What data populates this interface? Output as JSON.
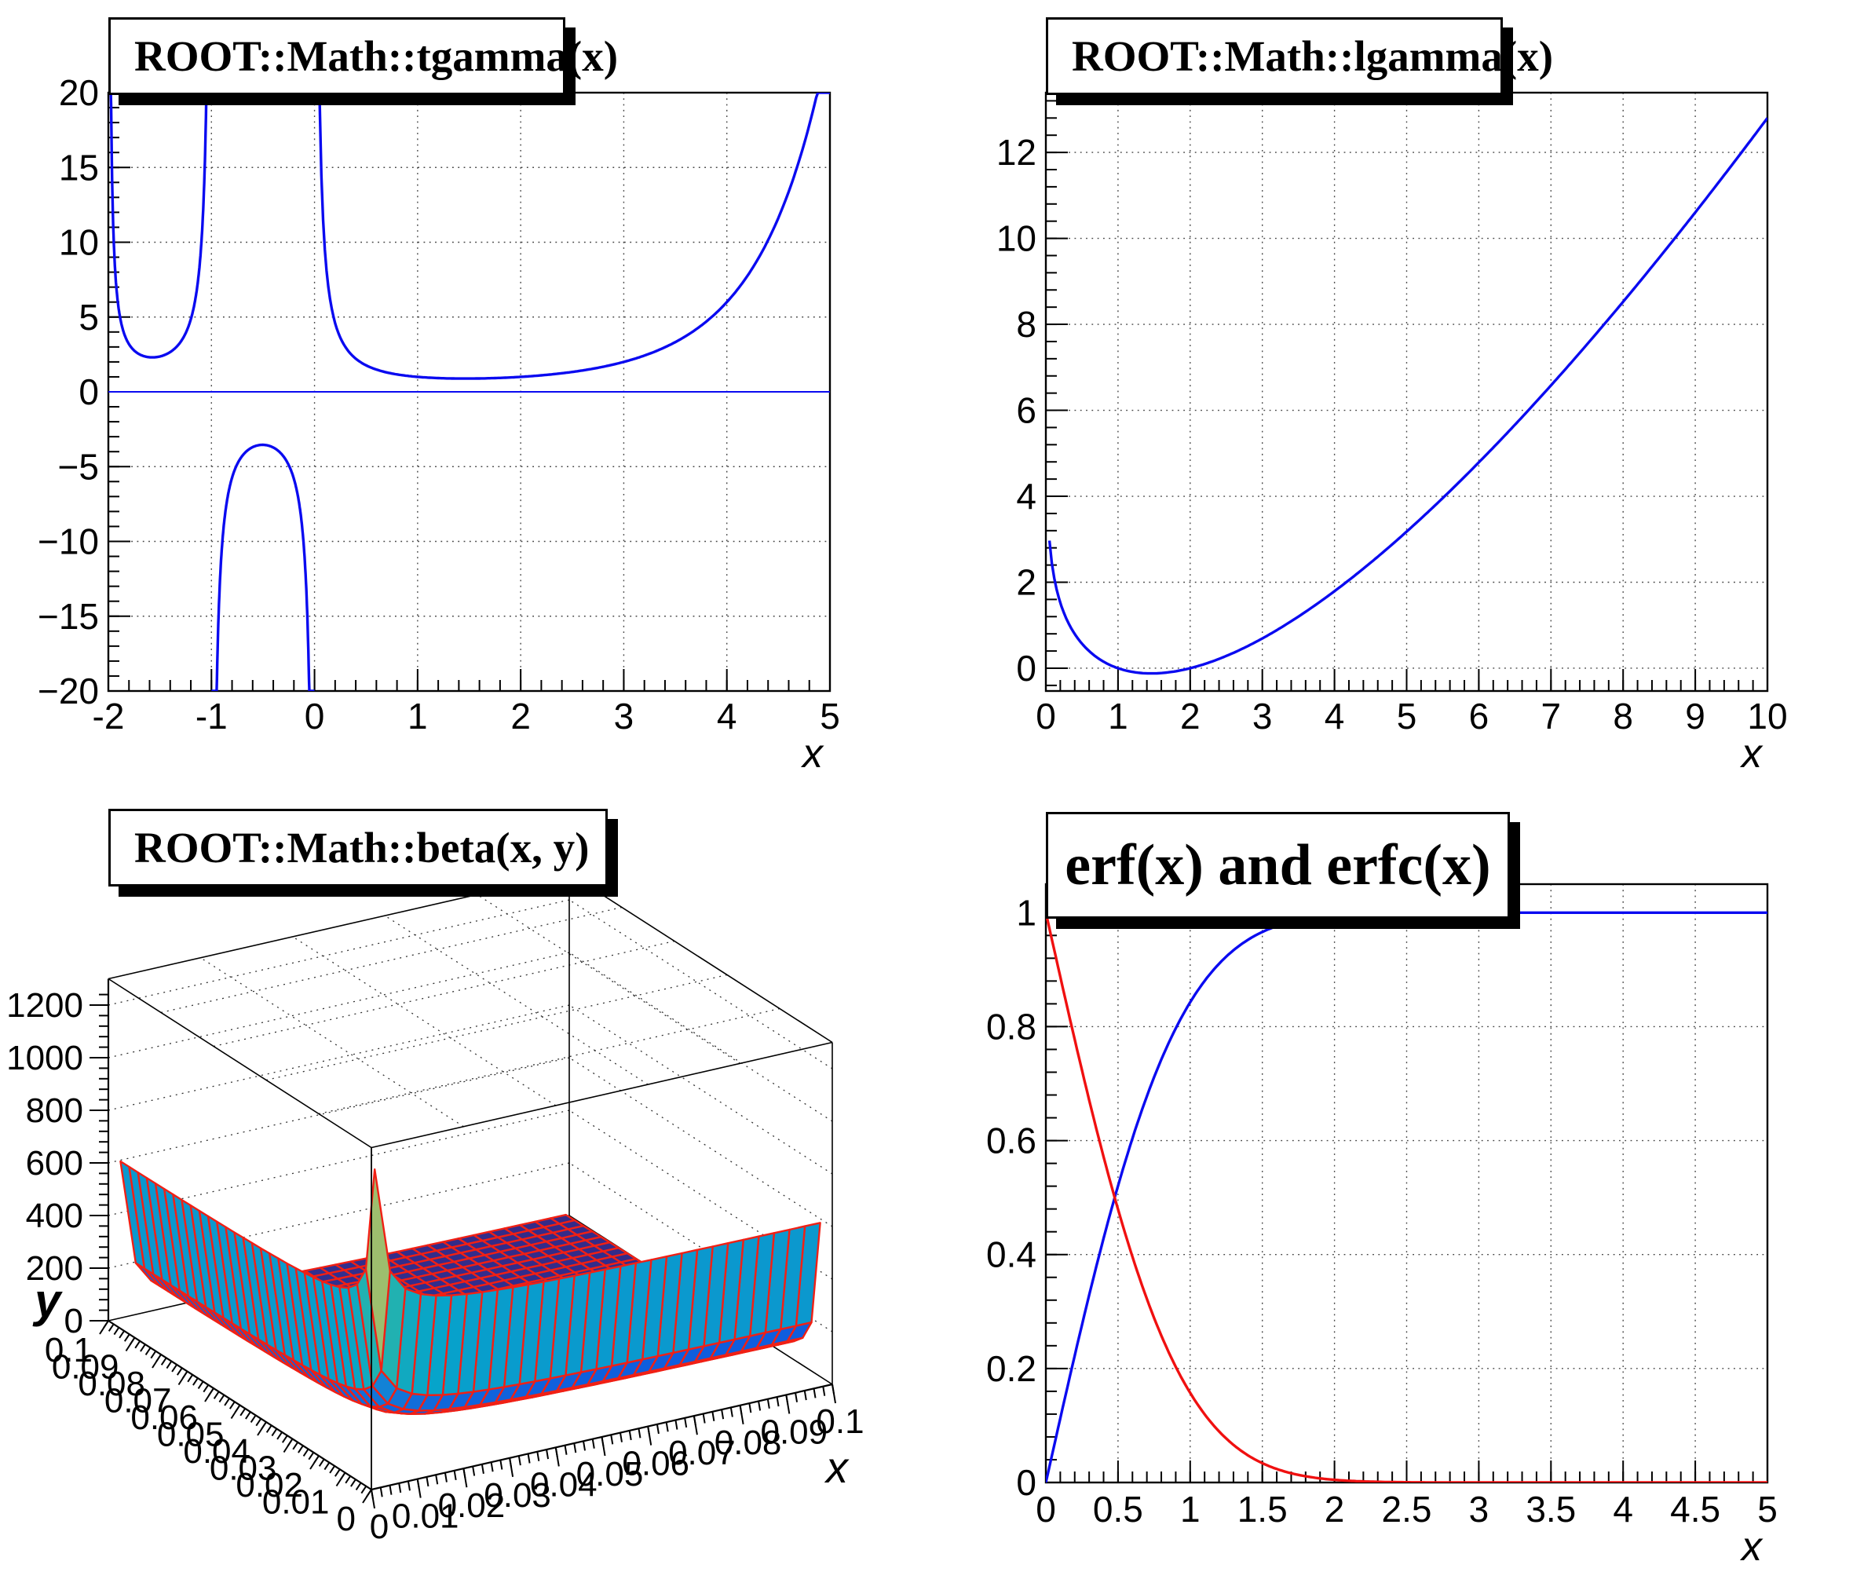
{
  "app": {
    "type": "ROOT canvas, 2x2 pads",
    "background": "#ffffff"
  },
  "colors": {
    "curve_blue": "#0a0af0",
    "curve_red": "#f01010",
    "axis": "#000000",
    "grid": "#444444",
    "pave_fill": "#ffffff",
    "pave_border": "#000000",
    "pave_shadow": "#000000",
    "surface_mesh_red": "#f02015",
    "bird_palette": [
      "#352A87",
      "#0F5CDD",
      "#1481D6",
      "#06A4CA",
      "#2EB7A4",
      "#87BF77",
      "#D1BB59",
      "#FEC832",
      "#F9FB0E"
    ]
  },
  "chart_data": [
    {
      "id": "tgamma",
      "type": "line",
      "title": "ROOT::Math::tgamma(x)",
      "xlabel": "x",
      "ylabel": "",
      "x_range": [
        -2,
        5
      ],
      "y_range": [
        -20,
        20
      ],
      "x_ticks": [
        "-2",
        "-1",
        "0",
        "1",
        "2",
        "3",
        "4",
        "5"
      ],
      "x_tick_values": [
        -2,
        -1,
        0,
        1,
        2,
        3,
        4,
        5
      ],
      "x_minor_step": 0.2,
      "y_ticks": [
        "20",
        "15",
        "10",
        "5",
        "0",
        "-5",
        "-10",
        "-15",
        "-20"
      ],
      "y_tick_values": [
        20,
        15,
        10,
        5,
        0,
        -5,
        -10,
        -15,
        -20
      ],
      "y_minor_step": 1,
      "grid": "dotted-at-major-ticks",
      "zero_line": true,
      "series": [
        {
          "name": "ROOT::Math::tgamma(x)",
          "color": "curve_blue",
          "function": "tgamma",
          "clip": [
            -20,
            20
          ],
          "branches": [
            [
              -1.9999,
              -1.0001
            ],
            [
              -0.9999,
              -0.0001
            ],
            [
              0.0001,
              5
            ]
          ],
          "key_points": [
            [
              -1.98,
              20
            ],
            [
              -1.9,
              5.56
            ],
            [
              -1.7,
              2.51
            ],
            [
              -1.573,
              2.3
            ],
            [
              -1.4,
              2.66
            ],
            [
              -1.2,
              4.85
            ],
            [
              -1.1,
              9.71
            ],
            [
              -1.05,
              19.6
            ],
            [
              -0.95,
              -20
            ],
            [
              -0.9,
              -10.57
            ],
            [
              -0.7,
              -4.27
            ],
            [
              -0.504,
              -3.545
            ],
            [
              -0.3,
              -4.33
            ],
            [
              -0.1,
              -10.69
            ],
            [
              -0.05,
              -20
            ],
            [
              0.049,
              20
            ],
            [
              0.1,
              9.51
            ],
            [
              0.5,
              1.772
            ],
            [
              1,
              1
            ],
            [
              1.4616,
              0.8856
            ],
            [
              2,
              1
            ],
            [
              3,
              2
            ],
            [
              4,
              6
            ],
            [
              4.5,
              11.63
            ],
            [
              4.88,
              20
            ]
          ]
        }
      ]
    },
    {
      "id": "lgamma",
      "type": "line",
      "title": "ROOT::Math::lgamma(x)",
      "xlabel": "x",
      "ylabel": "",
      "x_range": [
        0,
        10
      ],
      "y_range": [
        -0.53,
        13.39
      ],
      "x_ticks": [
        "0",
        "1",
        "2",
        "3",
        "4",
        "5",
        "6",
        "7",
        "8",
        "9",
        "10"
      ],
      "x_tick_values": [
        0,
        1,
        2,
        3,
        4,
        5,
        6,
        7,
        8,
        9,
        10
      ],
      "x_minor_step": 0.2,
      "y_ticks": [
        "12",
        "10",
        "8",
        "6",
        "4",
        "2",
        "0"
      ],
      "y_tick_values": [
        12,
        10,
        8,
        6,
        4,
        2,
        0
      ],
      "y_minor_step": 0.4,
      "grid": "dotted-at-major-ticks",
      "series": [
        {
          "name": "ROOT::Math::lgamma(x)",
          "color": "curve_blue",
          "function": "lgamma",
          "draw_range": [
            0.05,
            10
          ],
          "key_points": [
            [
              0.05,
              2.97
            ],
            [
              0.1,
              2.25
            ],
            [
              0.2,
              1.52
            ],
            [
              0.5,
              0.572
            ],
            [
              1,
              0
            ],
            [
              1.4616,
              -0.1214
            ],
            [
              2,
              0
            ],
            [
              3,
              0.693
            ],
            [
              4,
              1.792
            ],
            [
              5,
              3.178
            ],
            [
              6,
              4.787
            ],
            [
              7,
              6.579
            ],
            [
              8,
              8.525
            ],
            [
              9,
              10.605
            ],
            [
              10,
              12.802
            ]
          ]
        }
      ]
    },
    {
      "id": "beta",
      "type": "surface",
      "title": "ROOT::Math::beta(x, y)",
      "xlabel": "x",
      "ylabel": "y",
      "x_range": [
        0,
        0.1
      ],
      "y_range": [
        0,
        0.1
      ],
      "z_ticks": [
        "0",
        "200",
        "400",
        "600",
        "800",
        "1000",
        "1200"
      ],
      "z_tick_values": [
        0,
        200,
        400,
        600,
        800,
        1000,
        1200
      ],
      "z_minor_step": 40,
      "x_ticks": [
        "0",
        "0.01",
        "0.02",
        "0.03",
        "0.04",
        "0.05",
        "0.06",
        "0.07",
        "0.08",
        "0.09",
        "0.1"
      ],
      "y_ticks": [
        "0",
        "0.01",
        "0.02",
        "0.03",
        "0.04",
        "0.05",
        "0.06",
        "0.07",
        "0.08",
        "0.09",
        "0.1"
      ],
      "axis_tick_values": [
        0,
        0.01,
        0.02,
        0.03,
        0.04,
        0.05,
        0.06,
        0.07,
        0.08,
        0.09,
        0.1
      ],
      "axis_minor_step": 0.002,
      "grid_n": 30,
      "function": "beta(x,y) = Gamma(x)Gamma(y)/Gamma(x+y)",
      "z_color_range": [
        19.7,
        1199.6
      ],
      "key_points": [
        [
          0.00167,
          0.00167,
          1199.5
        ],
        [
          0.05,
          0.00167,
          619
        ],
        [
          0.00167,
          0.1,
          610
        ],
        [
          0.05,
          0.05,
          39.3
        ],
        [
          0.1,
          0.1,
          19.7
        ]
      ]
    },
    {
      "id": "erf",
      "type": "line",
      "title": "erf(x) and erfc(x)",
      "xlabel": "x",
      "ylabel": "",
      "x_range": [
        0,
        5
      ],
      "y_range": [
        0,
        1.05
      ],
      "x_ticks": [
        "0",
        "0.5",
        "1",
        "1.5",
        "2",
        "2.5",
        "3",
        "3.5",
        "4",
        "4.5",
        "5"
      ],
      "x_tick_values": [
        0,
        0.5,
        1,
        1.5,
        2,
        2.5,
        3,
        3.5,
        4,
        4.5,
        5
      ],
      "x_minor_step": 0.1,
      "y_ticks": [
        "1",
        "0.8",
        "0.6",
        "0.4",
        "0.2",
        "0"
      ],
      "y_tick_values": [
        1,
        0.8,
        0.6,
        0.4,
        0.2,
        0
      ],
      "y_minor_step": 0.04,
      "grid": "dotted-at-major-ticks",
      "series": [
        {
          "name": "erf(x)",
          "color": "curve_blue",
          "function": "erf",
          "key_points": [
            [
              0,
              0
            ],
            [
              0.25,
              0.2763
            ],
            [
              0.5,
              0.5205
            ],
            [
              0.75,
              0.7112
            ],
            [
              1,
              0.8427
            ],
            [
              1.25,
              0.9229
            ],
            [
              1.5,
              0.9661
            ],
            [
              2,
              0.9953
            ],
            [
              2.5,
              0.9996
            ],
            [
              3,
              1
            ],
            [
              5,
              1
            ]
          ]
        },
        {
          "name": "erfc(x)",
          "color": "curve_red",
          "function": "erfc",
          "key_points": [
            [
              0,
              1
            ],
            [
              0.25,
              0.7237
            ],
            [
              0.5,
              0.4795
            ],
            [
              0.75,
              0.2888
            ],
            [
              1,
              0.1573
            ],
            [
              1.25,
              0.0771
            ],
            [
              1.5,
              0.0339
            ],
            [
              2,
              0.0047
            ],
            [
              2.5,
              0.0004
            ],
            [
              3,
              0
            ],
            [
              5,
              0
            ]
          ]
        }
      ]
    }
  ]
}
